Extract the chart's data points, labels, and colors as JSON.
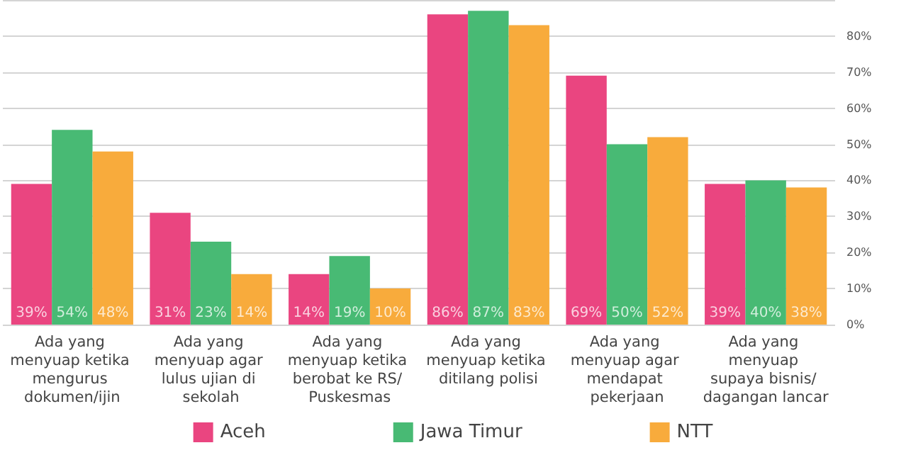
{
  "chart_data": {
    "type": "bar",
    "categories": [
      "Ada yang menyuap ketika mengurus dokumen/ijin",
      "Ada yang menyuap agar lulus ujian di sekolah",
      "Ada yang menyuap ketika berobat ke RS/ Puskesmas",
      "Ada yang menyuap ketika ditilang polisi",
      "Ada yang menyuap agar mendapat pekerjaan",
      "Ada yang menyuap supaya bisnis/ dagangan lancar"
    ],
    "series": [
      {
        "name": "Aceh",
        "color": "#ea4580",
        "values": [
          39,
          31,
          14,
          86,
          69,
          39
        ],
        "value_labels": [
          "39%",
          "31%",
          "14%",
          "86%",
          "69%",
          "39%"
        ]
      },
      {
        "name": "Jawa Timur",
        "color": "#48ba74",
        "values": [
          54,
          23,
          19,
          87,
          50,
          40
        ],
        "value_labels": [
          "54%",
          "23%",
          "19%",
          "87%",
          "50%",
          "40%"
        ]
      },
      {
        "name": "NTT",
        "color": "#f8ab3c",
        "values": [
          48,
          14,
          10,
          83,
          52,
          38
        ],
        "value_labels": [
          "48%",
          "14%",
          "10%",
          "83%",
          "52%",
          "38%"
        ]
      }
    ],
    "ylim": [
      0,
      90
    ],
    "yticks": [
      {
        "value": 0,
        "label": "0%"
      },
      {
        "value": 10,
        "label": "10%"
      },
      {
        "value": 20,
        "label": "20%"
      },
      {
        "value": 30,
        "label": "30%"
      },
      {
        "value": 40,
        "label": "40%"
      },
      {
        "value": 50,
        "label": "50%"
      },
      {
        "value": 60,
        "label": "60%"
      },
      {
        "value": 70,
        "label": "70%"
      },
      {
        "value": 80,
        "label": "80%"
      },
      {
        "value": 90,
        "label": null
      }
    ],
    "grid": "y",
    "legend": "bottom"
  }
}
